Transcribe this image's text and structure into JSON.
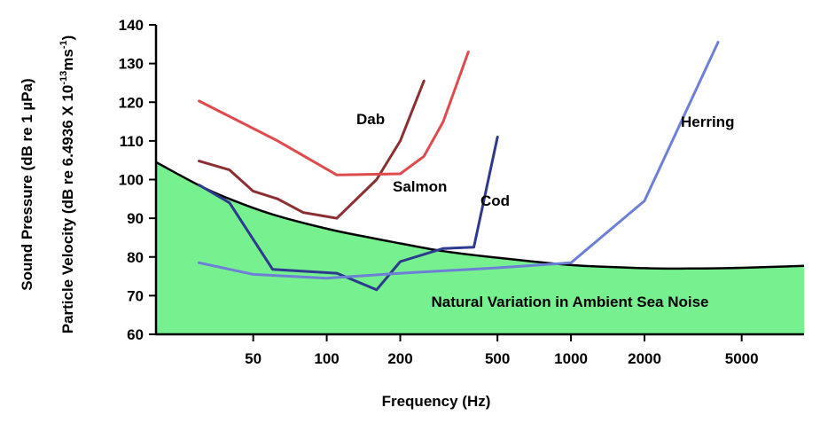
{
  "chart_data": {
    "type": "line",
    "xscale": "log",
    "xlim": [
      20,
      9000
    ],
    "ylim": [
      60,
      140
    ],
    "grid": false,
    "legend": "none",
    "xlabel": "Frequency (Hz)",
    "ylabel_outer": "Sound Pressure (dB re 1 µPa)",
    "ylabel_inner_prefix": "Particle Velocity (dB re 6.4936 X 10",
    "ylabel_inner_exp1": "-13",
    "ylabel_inner_mid": "ms",
    "ylabel_inner_exp2": "-1",
    "ylabel_inner_suffix": ")",
    "xticks": [
      50,
      100,
      200,
      500,
      1000,
      2000,
      5000
    ],
    "yticks": [
      60,
      70,
      80,
      90,
      100,
      110,
      120,
      130,
      140
    ],
    "region": {
      "label": "Natural Variation in Ambient Sea Noise",
      "color": "#77f08f",
      "boundary": {
        "x": [
          20,
          30,
          40,
          60,
          100,
          150,
          200,
          300,
          500,
          1000,
          2000,
          3000,
          5000,
          9000
        ],
        "y": [
          104.5,
          98.5,
          95,
          91,
          87.3,
          85,
          83.5,
          81.5,
          79.8,
          77.9,
          77.1,
          77.0,
          77.2,
          77.7
        ]
      }
    },
    "series": [
      {
        "name": "Dab",
        "color": "#8b3032",
        "x": [
          30,
          40,
          50,
          63,
          80,
          110,
          160,
          200,
          250
        ],
        "y": [
          104.8,
          102.5,
          97,
          95,
          91.5,
          90,
          100,
          110,
          125.5
        ]
      },
      {
        "name": "Salmon",
        "color": "#df4a4c",
        "x": [
          30,
          63,
          110,
          200,
          250,
          300,
          380
        ],
        "y": [
          120.3,
          110,
          101.2,
          101.5,
          106,
          115,
          133
        ]
      },
      {
        "name": "Cod",
        "color": "#2d3a8e",
        "x": [
          30,
          40,
          60,
          110,
          160,
          200,
          300,
          400,
          500
        ],
        "y": [
          98.6,
          94,
          76.8,
          75.8,
          71.5,
          78.8,
          82.2,
          82.5,
          111
        ]
      },
      {
        "name": "Herring",
        "color": "#6e7fd6",
        "x": [
          30,
          50,
          100,
          200,
          500,
          1000,
          2000,
          4000
        ],
        "y": [
          78.5,
          75.5,
          74.5,
          75.8,
          77.2,
          78.5,
          94.5,
          135.5
        ]
      }
    ]
  }
}
